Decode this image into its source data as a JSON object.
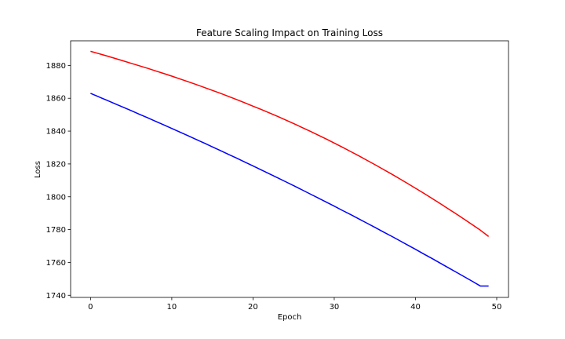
{
  "chart_data": {
    "type": "line",
    "title": "Feature Scaling Impact on Training Loss",
    "xlabel": "Epoch",
    "ylabel": "Loss",
    "xlim": [
      -2.45,
      51.45
    ],
    "ylim": [
      1738.7,
      1895.0
    ],
    "xticks": [
      0,
      10,
      20,
      30,
      40,
      50
    ],
    "yticks": [
      1740,
      1760,
      1780,
      1800,
      1820,
      1840,
      1860,
      1880
    ],
    "grid": false,
    "legend": "none",
    "x": [
      0,
      1,
      2,
      3,
      4,
      5,
      6,
      7,
      8,
      9,
      10,
      11,
      12,
      13,
      14,
      15,
      16,
      17,
      18,
      19,
      20,
      21,
      22,
      23,
      24,
      25,
      26,
      27,
      28,
      29,
      30,
      31,
      32,
      33,
      34,
      35,
      36,
      37,
      38,
      39,
      40,
      41,
      42,
      43,
      44,
      45,
      46,
      47,
      48,
      49
    ],
    "series": [
      {
        "color": "#ff0000",
        "values": [
          1888.6,
          1887.2,
          1885.8,
          1884.3,
          1882.8,
          1881.3,
          1879.8,
          1878.3,
          1876.7,
          1875.1,
          1873.5,
          1871.8,
          1870.1,
          1868.4,
          1866.6,
          1864.8,
          1863.0,
          1861.1,
          1859.2,
          1857.2,
          1855.2,
          1853.2,
          1851.1,
          1849.0,
          1846.8,
          1844.6,
          1842.3,
          1840.0,
          1837.6,
          1835.2,
          1832.7,
          1830.2,
          1827.6,
          1825.0,
          1822.3,
          1819.6,
          1816.8,
          1814.0,
          1811.1,
          1808.2,
          1805.2,
          1802.2,
          1799.1,
          1796.0,
          1792.8,
          1789.6,
          1786.3,
          1783.0,
          1779.6,
          1775.8
        ]
      },
      {
        "color": "#0000ff",
        "values": [
          1863.0,
          1860.9,
          1858.8,
          1856.7,
          1854.6,
          1852.5,
          1850.3,
          1848.2,
          1846.0,
          1843.8,
          1841.6,
          1839.4,
          1837.2,
          1834.9,
          1832.7,
          1830.4,
          1828.1,
          1825.8,
          1823.5,
          1821.1,
          1818.8,
          1816.4,
          1814.0,
          1811.6,
          1809.2,
          1806.8,
          1804.3,
          1801.8,
          1799.3,
          1796.8,
          1794.3,
          1791.7,
          1789.2,
          1786.6,
          1784.0,
          1781.4,
          1778.7,
          1776.1,
          1773.4,
          1770.7,
          1768.0,
          1765.2,
          1762.5,
          1759.7,
          1756.9,
          1754.1,
          1751.3,
          1748.5,
          1745.6,
          1745.6
        ]
      }
    ]
  }
}
